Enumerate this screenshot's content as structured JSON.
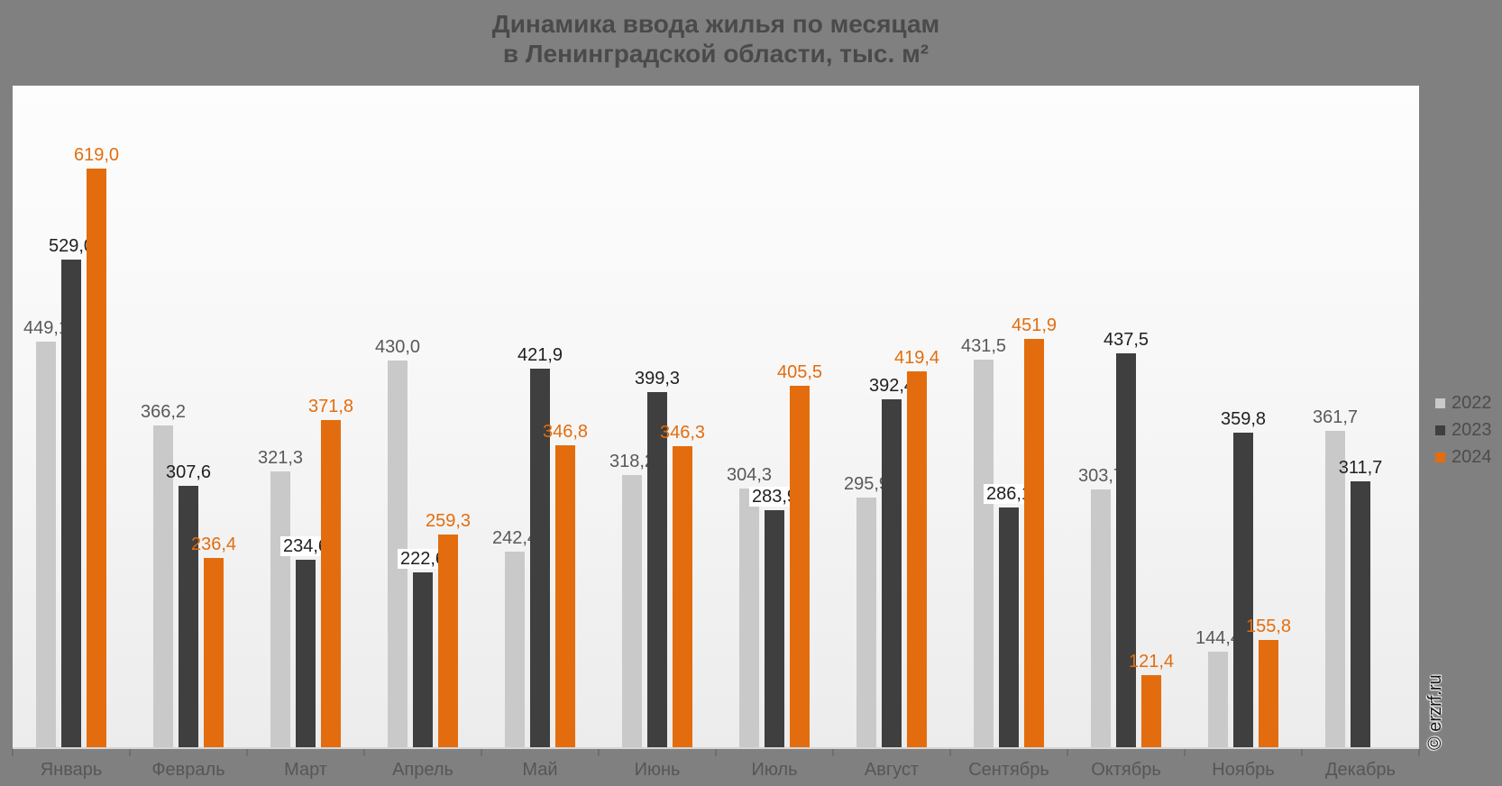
{
  "title": {
    "line1": "Динамика ввода жилья по месяцам",
    "line2": "в Ленинградской области, тыс. м²"
  },
  "watermark": "© erzrf.ru",
  "legend": {
    "position": "right",
    "entries": [
      {
        "label": "2022",
        "color": "#c9c9c9"
      },
      {
        "label": "2023",
        "color": "#3f3f3f"
      },
      {
        "label": "2024",
        "color": "#e36d0e"
      }
    ]
  },
  "chart_data": {
    "type": "bar",
    "title": "Динамика ввода жилья по месяцам в Ленинградской области, тыс. м²",
    "xlabel": "",
    "ylabel": "тыс. м²",
    "grid": false,
    "legend_position": "right",
    "decimal_separator": ",",
    "categories": [
      "Январь",
      "Февраль",
      "Март",
      "Апрель",
      "Май",
      "Июнь",
      "Июль",
      "Август",
      "Сентябрь",
      "Октябрь",
      "Ноябрь",
      "Декабрь"
    ],
    "series": [
      {
        "name": "2022",
        "color": "#c9c9c9",
        "label_color": "#595959",
        "values": [
          449.1,
          366.2,
          321.3,
          430.0,
          242.4,
          318.2,
          304.3,
          295.9,
          431.5,
          303.7,
          144.4,
          361.7
        ]
      },
      {
        "name": "2023",
        "color": "#3f3f3f",
        "label_color": "#1f1f1f",
        "values": [
          529.0,
          307.6,
          234.6,
          222.6,
          421.9,
          399.3,
          283.9,
          392.4,
          286.1,
          437.5,
          359.8,
          311.7
        ]
      },
      {
        "name": "2024",
        "color": "#e36d0e",
        "label_color": "#e36d0e",
        "values": [
          619.0,
          236.4,
          371.8,
          259.3,
          346.8,
          346.3,
          405.5,
          419.4,
          451.9,
          121.4,
          155.8,
          null
        ]
      }
    ],
    "boxed_value_labels": [
      [
        1,
        2
      ],
      [
        1,
        3
      ],
      [
        1,
        6
      ],
      [
        1,
        8
      ]
    ],
    "ylim": [
      50,
      700
    ]
  }
}
